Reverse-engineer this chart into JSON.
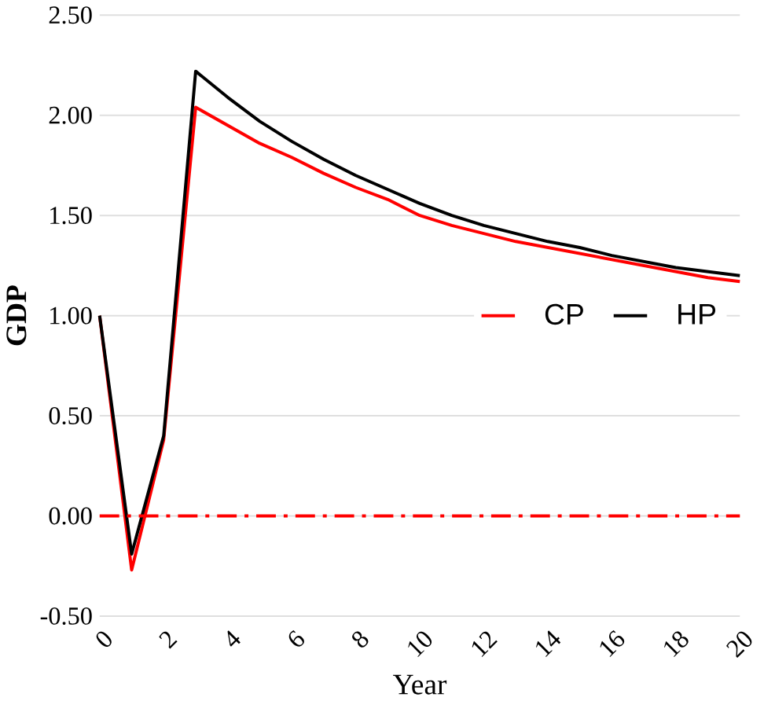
{
  "chart_data": {
    "type": "line",
    "xlabel": "Year",
    "ylabel": "GDP",
    "x": [
      0,
      1,
      2,
      3,
      4,
      5,
      6,
      7,
      8,
      9,
      10,
      11,
      12,
      13,
      14,
      15,
      16,
      17,
      18,
      19,
      20
    ],
    "series": [
      {
        "name": "CP",
        "color": "#ff0000",
        "values": [
          1.0,
          -0.27,
          0.38,
          2.04,
          1.95,
          1.86,
          1.79,
          1.71,
          1.64,
          1.58,
          1.5,
          1.45,
          1.41,
          1.37,
          1.34,
          1.31,
          1.28,
          1.25,
          1.22,
          1.19,
          1.17
        ]
      },
      {
        "name": "HP",
        "color": "#000000",
        "values": [
          1.0,
          -0.19,
          0.4,
          2.22,
          2.09,
          1.97,
          1.87,
          1.78,
          1.7,
          1.63,
          1.56,
          1.5,
          1.45,
          1.41,
          1.37,
          1.34,
          1.3,
          1.27,
          1.24,
          1.22,
          1.2
        ]
      }
    ],
    "xlim": [
      0,
      20
    ],
    "xticks": [
      0,
      2,
      4,
      6,
      8,
      10,
      12,
      14,
      16,
      18,
      20
    ],
    "ylim": [
      -0.5,
      2.5
    ],
    "yticks": [
      {
        "value": -0.5,
        "label": "-0.50"
      },
      {
        "value": 0,
        "label": "0.00"
      },
      {
        "value": 0.5,
        "label": "0.50"
      },
      {
        "value": 1,
        "label": "1.00"
      },
      {
        "value": 1.5,
        "label": "1.50"
      },
      {
        "value": 2,
        "label": "2.00"
      },
      {
        "value": 2.5,
        "label": "2.50"
      }
    ],
    "ref_lines": [
      {
        "axis": "y",
        "value": 0,
        "color": "#ff0000",
        "line_style": "dashed"
      }
    ],
    "grid": "y",
    "legend": "right",
    "marker": "none",
    "line_style": "solid"
  }
}
